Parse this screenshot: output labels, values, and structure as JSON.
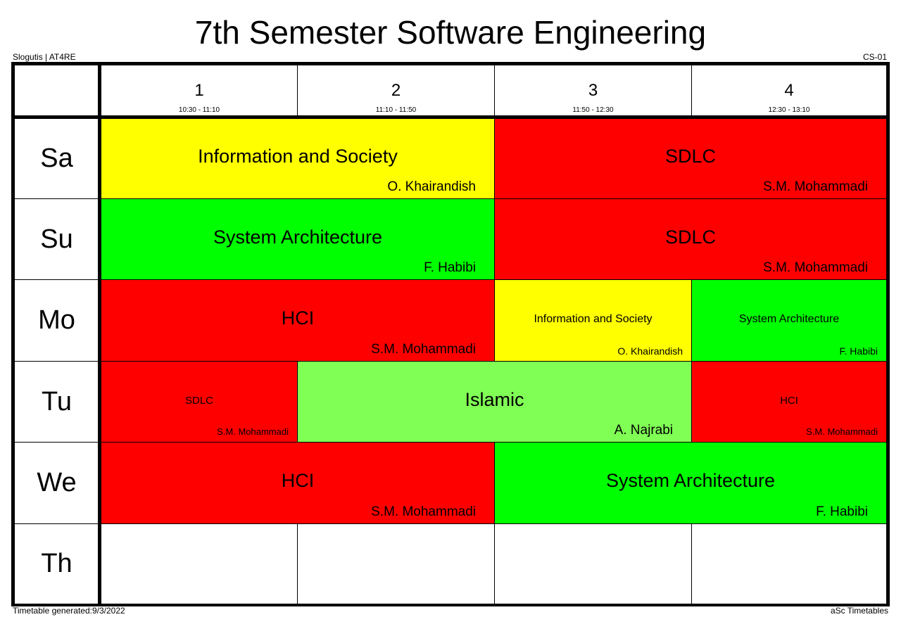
{
  "title": "7th Semester Software Engineering",
  "school": "Slogutis | AT4RE",
  "class_code": "CS-01",
  "generated": "Timetable generated:9/3/2022",
  "generator": "aSc Timetables",
  "colors": {
    "red": "#ff0000",
    "green": "#00ff00",
    "yellow": "#ffff00",
    "light_green": "#80ff55"
  },
  "periods": [
    {
      "num": "1",
      "time": "10:30 - 11:10"
    },
    {
      "num": "2",
      "time": "11:10 - 11:50"
    },
    {
      "num": "3",
      "time": "11:50 - 12:30"
    },
    {
      "num": "4",
      "time": "12:30 - 13:10"
    }
  ],
  "days": [
    "Sa",
    "Su",
    "Mo",
    "Tu",
    "We",
    "Th"
  ],
  "lessons": [
    {
      "subject": "Information and Society",
      "teacher": "O. Khairandish"
    },
    {
      "subject": "SDLC",
      "teacher": "S.M. Mohammadi"
    },
    {
      "subject": "System Architecture",
      "teacher": "F. Habibi"
    },
    {
      "subject": "SDLC",
      "teacher": "S.M. Mohammadi"
    },
    {
      "subject": "HCI",
      "teacher": "S.M. Mohammadi"
    },
    {
      "subject": "Information and Society",
      "teacher": "O. Khairandish"
    },
    {
      "subject": "System Architecture",
      "teacher": "F. Habibi"
    },
    {
      "subject": "SDLC",
      "teacher": "S.M. Mohammadi"
    },
    {
      "subject": "Islamic",
      "teacher": "A. Najrabi"
    },
    {
      "subject": "HCI",
      "teacher": "S.M. Mohammadi"
    },
    {
      "subject": "HCI",
      "teacher": "S.M. Mohammadi"
    },
    {
      "subject": "System Architecture",
      "teacher": "F. Habibi"
    }
  ]
}
